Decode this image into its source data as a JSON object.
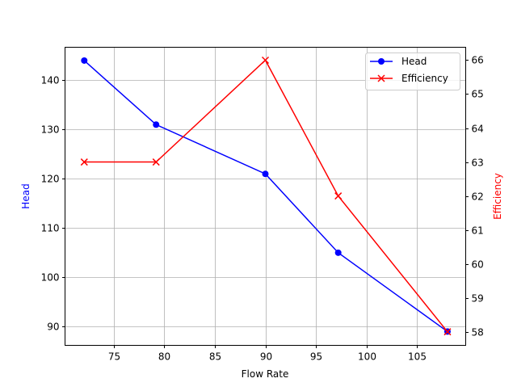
{
  "chart_data": {
    "type": "line",
    "xlabel": "Flow Rate",
    "x": [
      72.1,
      79.2,
      90.0,
      97.2,
      108.0
    ],
    "xlim": [
      70.2,
      109.8
    ],
    "xticks": [
      75,
      80,
      85,
      90,
      95,
      100,
      105
    ],
    "grid": true,
    "legend_placement": "upper-right",
    "series": [
      {
        "name": "Head",
        "axis": "left",
        "ylabel": "Head",
        "color": "#0000ff",
        "marker": "circle",
        "values": [
          144,
          131,
          121,
          105,
          89
        ]
      },
      {
        "name": "Efficiency",
        "axis": "right",
        "ylabel": "Efficiency",
        "color": "#ff0000",
        "marker": "x",
        "values": [
          63,
          63,
          66,
          62,
          58
        ]
      }
    ],
    "y_left": {
      "label": "Head",
      "lim": [
        86.2,
        146.7
      ],
      "ticks": [
        90,
        100,
        110,
        120,
        130,
        140
      ],
      "color": "#0000ff"
    },
    "y_right": {
      "label": "Efficiency",
      "lim": [
        57.6,
        66.38
      ],
      "ticks": [
        58,
        59,
        60,
        61,
        62,
        63,
        64,
        65,
        66
      ],
      "color": "#ff0000"
    }
  }
}
